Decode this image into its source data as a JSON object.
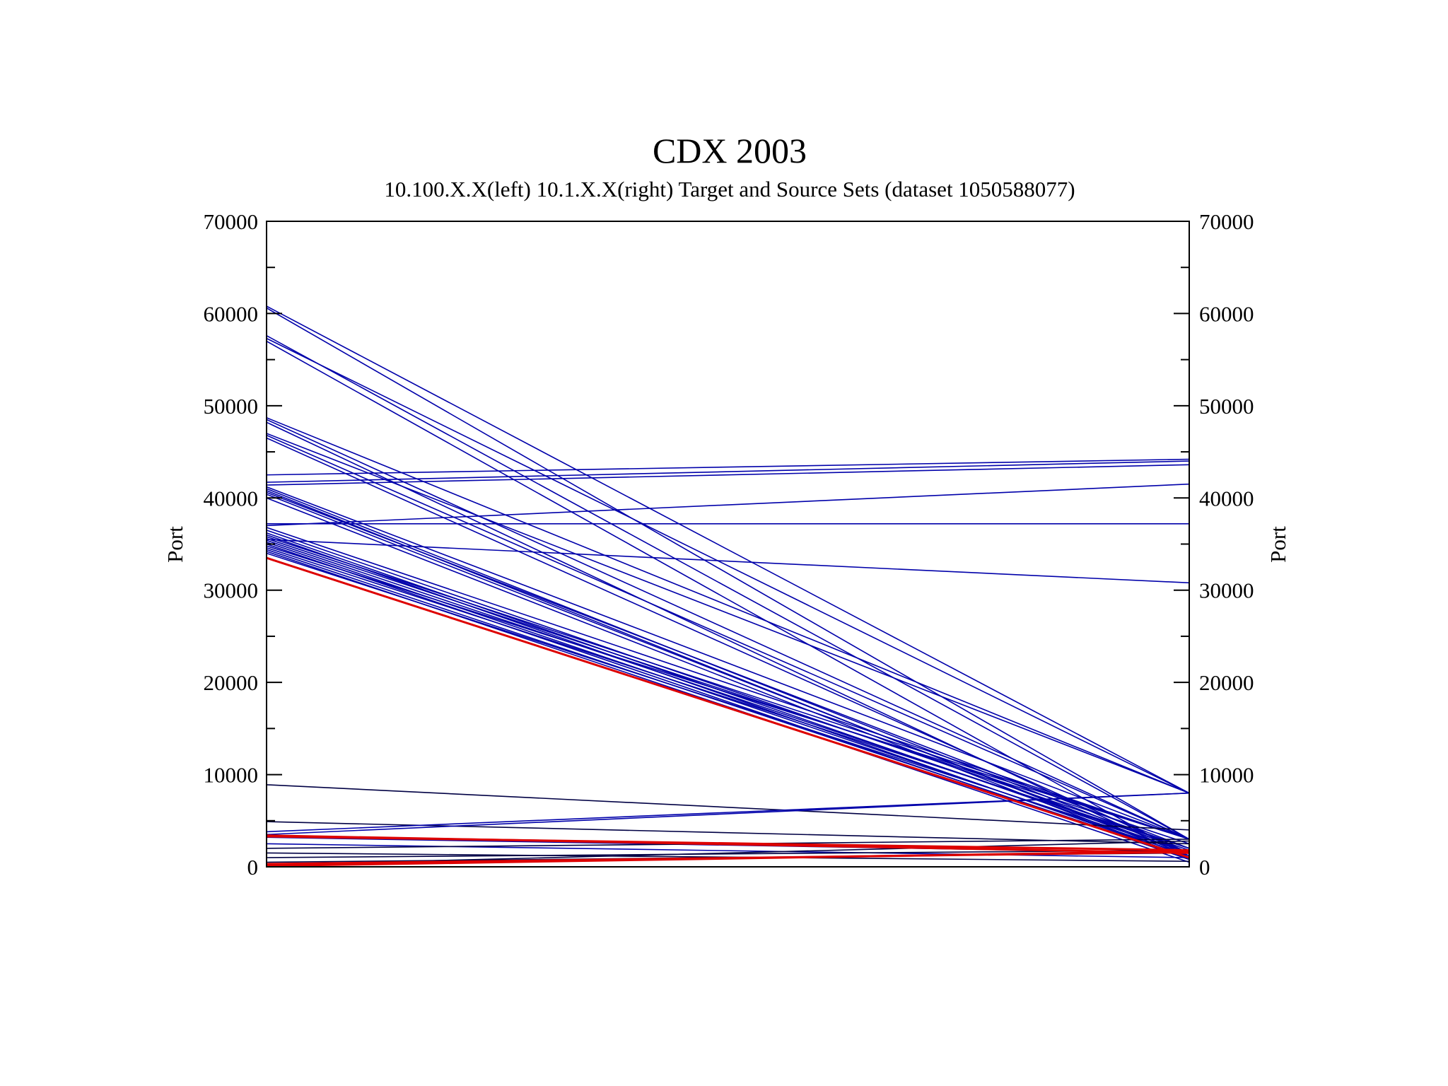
{
  "chart_data": {
    "type": "line",
    "subtype": "parallel-coordinates",
    "title": "CDX 2003",
    "subtitle": "10.100.X.X(left) 10.1.X.X(right) Target and Source Sets  (dataset 1050588077)",
    "ylabel_left": "Port",
    "ylabel_right": "Port",
    "ylim": [
      0,
      70000
    ],
    "yticks": [
      0,
      10000,
      20000,
      30000,
      40000,
      50000,
      60000,
      70000
    ],
    "ytick_labels": [
      "0",
      "10000",
      "20000",
      "30000",
      "40000",
      "50000",
      "60000",
      "70000"
    ],
    "grid": false,
    "legend": "none",
    "colors": {
      "blue": "#0000aa",
      "red": "#dd0000",
      "dark": "#000044"
    },
    "series": [
      {
        "color": "blue",
        "left": 60800,
        "right": 8000
      },
      {
        "color": "blue",
        "left": 60600,
        "right": 3000
      },
      {
        "color": "blue",
        "left": 57600,
        "right": 3000
      },
      {
        "color": "blue",
        "left": 57300,
        "right": 8000
      },
      {
        "color": "blue",
        "left": 57000,
        "right": 1000
      },
      {
        "color": "blue",
        "left": 48700,
        "right": 8000
      },
      {
        "color": "blue",
        "left": 48500,
        "right": 3000
      },
      {
        "color": "blue",
        "left": 48200,
        "right": 1000
      },
      {
        "color": "blue",
        "left": 47000,
        "right": 8000
      },
      {
        "color": "blue",
        "left": 46800,
        "right": 3000
      },
      {
        "color": "blue",
        "left": 46500,
        "right": 1500
      },
      {
        "color": "blue",
        "left": 42500,
        "right": 44200
      },
      {
        "color": "blue",
        "left": 41700,
        "right": 44000
      },
      {
        "color": "blue",
        "left": 41400,
        "right": 43600
      },
      {
        "color": "blue",
        "left": 41200,
        "right": 3000
      },
      {
        "color": "blue",
        "left": 41000,
        "right": 1500
      },
      {
        "color": "blue",
        "left": 40800,
        "right": 1000
      },
      {
        "color": "blue",
        "left": 40600,
        "right": 2000
      },
      {
        "color": "blue",
        "left": 40400,
        "right": 1200
      },
      {
        "color": "blue",
        "left": 40000,
        "right": 800
      },
      {
        "color": "blue",
        "left": 37200,
        "right": 37200
      },
      {
        "color": "blue",
        "left": 37000,
        "right": 41500
      },
      {
        "color": "blue",
        "left": 36800,
        "right": 3000
      },
      {
        "color": "blue",
        "left": 36500,
        "right": 2000
      },
      {
        "color": "blue",
        "left": 36200,
        "right": 1500
      },
      {
        "color": "blue",
        "left": 36000,
        "right": 1000
      },
      {
        "color": "blue",
        "left": 35800,
        "right": 3000
      },
      {
        "color": "blue",
        "left": 35600,
        "right": 2500
      },
      {
        "color": "blue",
        "left": 35400,
        "right": 1800
      },
      {
        "color": "blue",
        "left": 35200,
        "right": 1200
      },
      {
        "color": "blue",
        "left": 35000,
        "right": 800
      },
      {
        "color": "blue",
        "left": 34800,
        "right": 3000
      },
      {
        "color": "blue",
        "left": 34600,
        "right": 2000
      },
      {
        "color": "blue",
        "left": 34400,
        "right": 1000
      },
      {
        "color": "blue",
        "left": 34200,
        "right": 500
      },
      {
        "color": "blue",
        "left": 35500,
        "right": 30800
      },
      {
        "color": "blue",
        "left": 34000,
        "right": 1500
      },
      {
        "color": "dark",
        "left": 8900,
        "right": 4000
      },
      {
        "color": "dark",
        "left": 4900,
        "right": 2500
      },
      {
        "color": "blue",
        "left": 3800,
        "right": 8000
      },
      {
        "color": "blue",
        "left": 3500,
        "right": 8000
      },
      {
        "color": "blue",
        "left": 3200,
        "right": 1500
      },
      {
        "color": "blue",
        "left": 2500,
        "right": 1000
      },
      {
        "color": "dark",
        "left": 2000,
        "right": 3000
      },
      {
        "color": "dark",
        "left": 1500,
        "right": 600
      },
      {
        "color": "dark",
        "left": 1000,
        "right": 1800
      },
      {
        "color": "dark",
        "left": 500,
        "right": 1500
      },
      {
        "color": "dark",
        "left": 200,
        "right": 2800
      },
      {
        "color": "red",
        "left": 33500,
        "right": 1000
      },
      {
        "color": "red",
        "left": 3400,
        "right": 1500
      },
      {
        "color": "red",
        "left": 3300,
        "right": 1800
      },
      {
        "color": "red",
        "left": 300,
        "right": 1600
      },
      {
        "color": "red",
        "left": 100,
        "right": 1700
      }
    ]
  }
}
